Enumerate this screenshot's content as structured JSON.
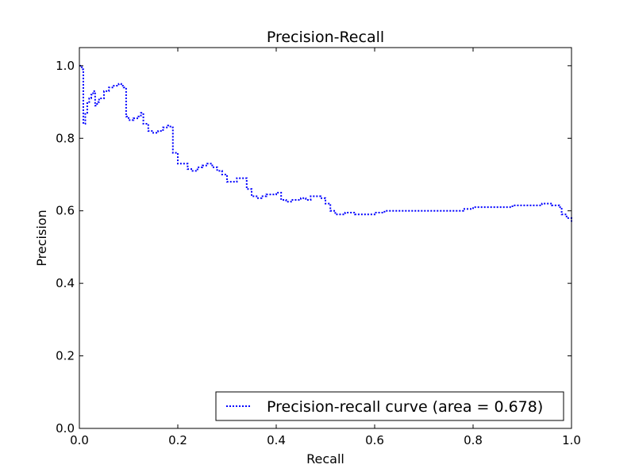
{
  "chart_data": {
    "type": "line",
    "title": "Precision-Recall",
    "xlabel": "Recall",
    "ylabel": "Precision",
    "xlim": [
      0.0,
      1.0
    ],
    "ylim": [
      0.0,
      1.05
    ],
    "xticks": [
      "0.0",
      "0.2",
      "0.4",
      "0.6",
      "0.8",
      "1.0"
    ],
    "yticks": [
      "0.0",
      "0.2",
      "0.4",
      "0.6",
      "0.8",
      "1.0"
    ],
    "grid": false,
    "legend_position": "lower-right",
    "series": [
      {
        "name": "Precision-recall curve (area = 0.678)",
        "color": "#0000ff",
        "line_style": "dotted",
        "x": [
          0.0,
          0.005,
          0.008,
          0.012,
          0.016,
          0.02,
          0.024,
          0.028,
          0.032,
          0.036,
          0.04,
          0.05,
          0.06,
          0.07,
          0.08,
          0.085,
          0.09,
          0.095,
          0.1,
          0.11,
          0.12,
          0.125,
          0.13,
          0.14,
          0.15,
          0.16,
          0.17,
          0.18,
          0.185,
          0.19,
          0.2,
          0.21,
          0.22,
          0.23,
          0.24,
          0.25,
          0.26,
          0.27,
          0.28,
          0.29,
          0.3,
          0.31,
          0.32,
          0.33,
          0.34,
          0.35,
          0.36,
          0.37,
          0.38,
          0.39,
          0.4,
          0.41,
          0.42,
          0.43,
          0.44,
          0.45,
          0.46,
          0.47,
          0.48,
          0.49,
          0.5,
          0.51,
          0.52,
          0.53,
          0.54,
          0.55,
          0.56,
          0.57,
          0.58,
          0.59,
          0.6,
          0.62,
          0.64,
          0.66,
          0.68,
          0.7,
          0.72,
          0.74,
          0.76,
          0.78,
          0.8,
          0.82,
          0.84,
          0.86,
          0.88,
          0.9,
          0.92,
          0.94,
          0.95,
          0.96,
          0.97,
          0.975,
          0.98,
          0.99,
          1.0
        ],
        "y": [
          1.0,
          0.99,
          0.84,
          0.87,
          0.9,
          0.91,
          0.92,
          0.93,
          0.89,
          0.9,
          0.91,
          0.93,
          0.94,
          0.945,
          0.95,
          0.945,
          0.94,
          0.86,
          0.85,
          0.855,
          0.86,
          0.87,
          0.84,
          0.82,
          0.815,
          0.82,
          0.83,
          0.835,
          0.83,
          0.76,
          0.73,
          0.73,
          0.715,
          0.71,
          0.72,
          0.725,
          0.73,
          0.72,
          0.71,
          0.7,
          0.68,
          0.68,
          0.69,
          0.69,
          0.66,
          0.64,
          0.635,
          0.64,
          0.645,
          0.645,
          0.65,
          0.63,
          0.625,
          0.63,
          0.63,
          0.635,
          0.63,
          0.64,
          0.64,
          0.635,
          0.62,
          0.6,
          0.59,
          0.59,
          0.595,
          0.595,
          0.59,
          0.59,
          0.59,
          0.59,
          0.595,
          0.6,
          0.6,
          0.6,
          0.6,
          0.6,
          0.6,
          0.6,
          0.6,
          0.605,
          0.61,
          0.61,
          0.61,
          0.61,
          0.615,
          0.615,
          0.615,
          0.62,
          0.62,
          0.615,
          0.615,
          0.61,
          0.59,
          0.58,
          0.57
        ]
      }
    ]
  }
}
